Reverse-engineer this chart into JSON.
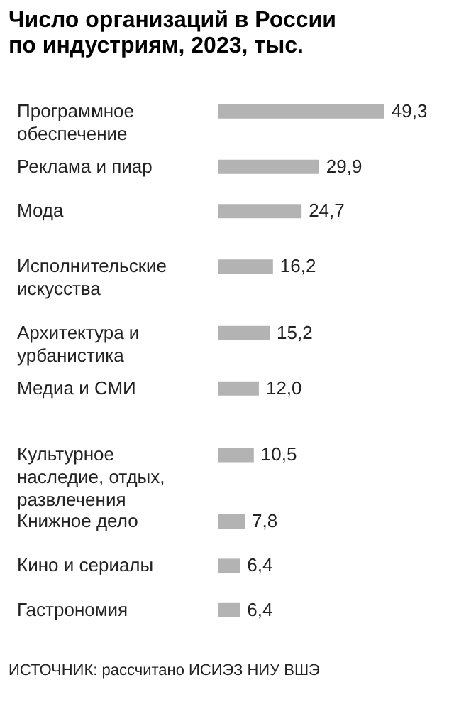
{
  "chart_data": {
    "type": "bar",
    "orientation": "horizontal",
    "title": "Число организаций в России по индустриям, 2023, тыс.",
    "categories": [
      "Программное обеспечение",
      "Реклама и пиар",
      "Мода",
      "Исполнительские искусства",
      "Архитектура и урбанистика",
      "Медиа и СМИ",
      "Культурное наследие, отдых, развлечения",
      "Книжное дело",
      "Кино и сериалы",
      "Гастрономия"
    ],
    "values": [
      49.3,
      29.9,
      24.7,
      16.2,
      15.2,
      12.0,
      10.5,
      7.8,
      6.4,
      6.4
    ],
    "color": "#b3b3b3",
    "value_labels": [
      "49,3",
      "29,9",
      "24,7",
      "16,2",
      "15,2",
      "12,0",
      "10,5",
      "7,8",
      "6,4",
      "6,4"
    ],
    "annotations": [
      "ИСТОЧНИК: рассчитано ИСИЭЗ НИУ ВШЭ"
    ]
  }
}
